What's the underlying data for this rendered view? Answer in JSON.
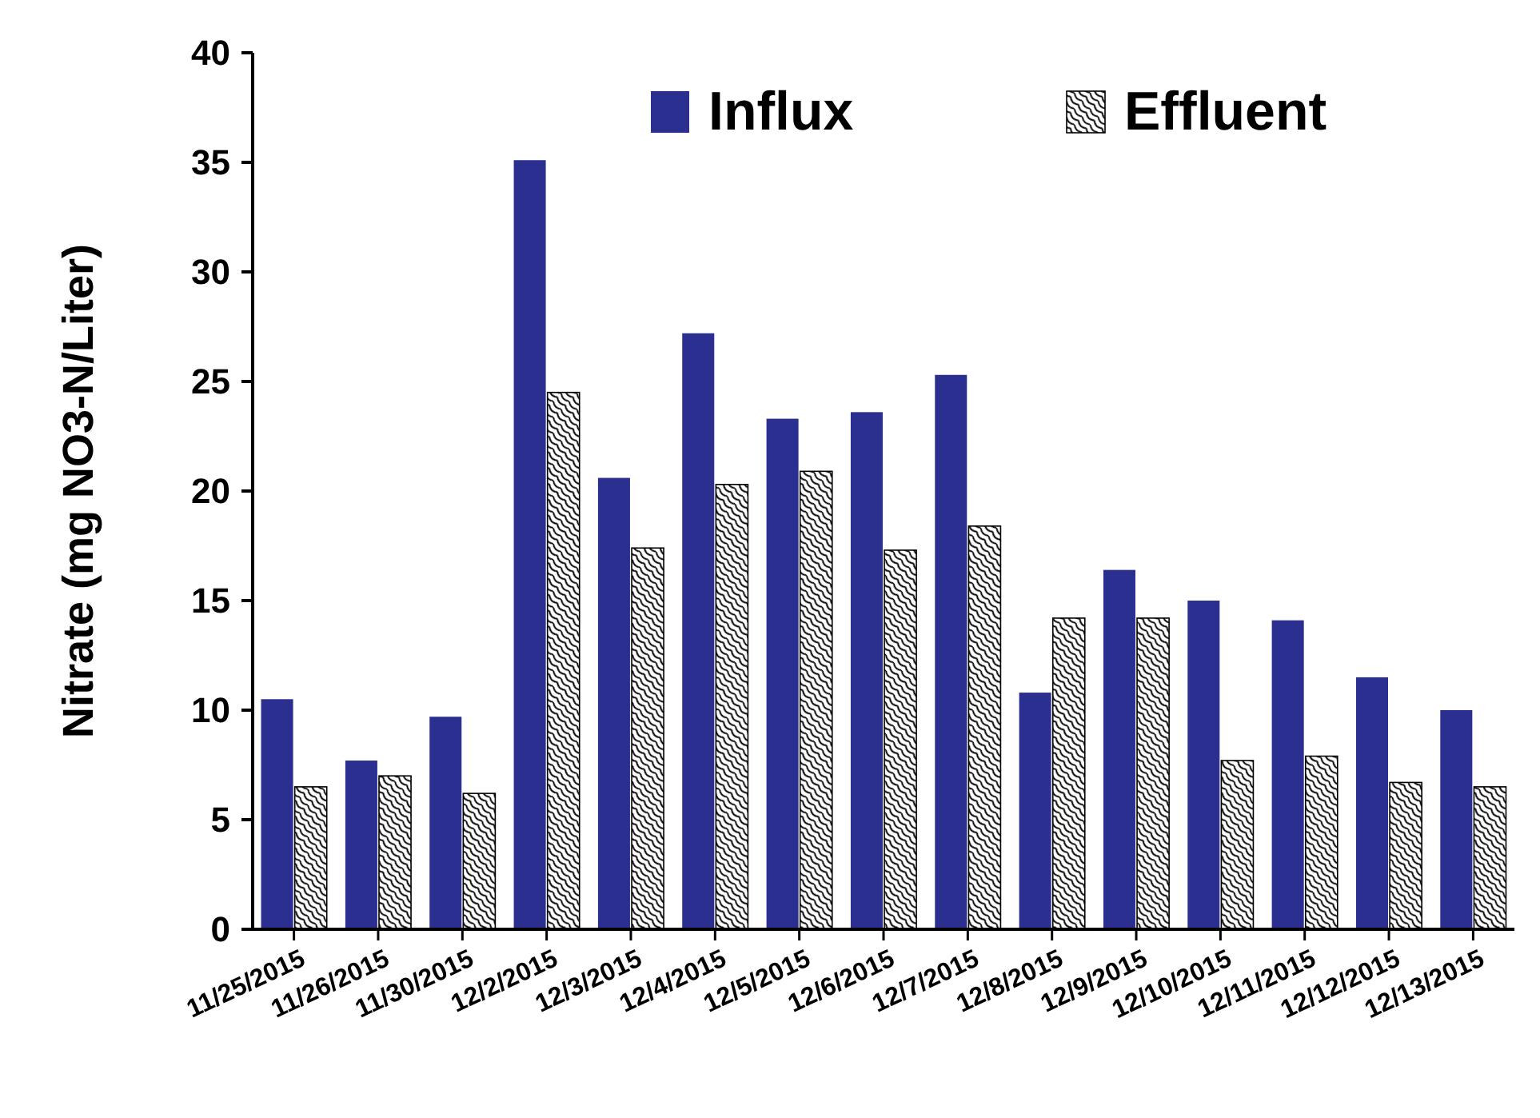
{
  "chart_data": {
    "type": "bar",
    "ylabel": "Nitrate (mg NO3-N/Liter)",
    "categories": [
      "11/25/2015",
      "11/26/2015",
      "11/30/2015",
      "12/2/2015",
      "12/3/2015",
      "12/4/2015",
      "12/5/2015",
      "12/6/2015",
      "12/7/2015",
      "12/8/2015",
      "12/9/2015",
      "12/10/2015",
      "12/11/2015",
      "12/12/2015",
      "12/13/2015"
    ],
    "series": [
      {
        "name": "Influx",
        "color": "#2b2f8f",
        "values": [
          10.5,
          7.7,
          9.7,
          35.1,
          20.6,
          27.2,
          23.3,
          23.6,
          25.3,
          10.8,
          16.4,
          15.0,
          14.1,
          11.5,
          10.0
        ]
      },
      {
        "name": "Effluent",
        "color": "#000000",
        "values": [
          6.5,
          7.0,
          6.2,
          24.5,
          17.4,
          20.3,
          20.9,
          17.3,
          18.4,
          14.2,
          14.2,
          7.7,
          7.9,
          6.7,
          6.5
        ]
      }
    ],
    "ylim": [
      0,
      40
    ],
    "yticks": [
      0,
      5,
      10,
      15,
      20,
      25,
      30,
      35,
      40
    ],
    "grid": false,
    "legend": "top right"
  }
}
